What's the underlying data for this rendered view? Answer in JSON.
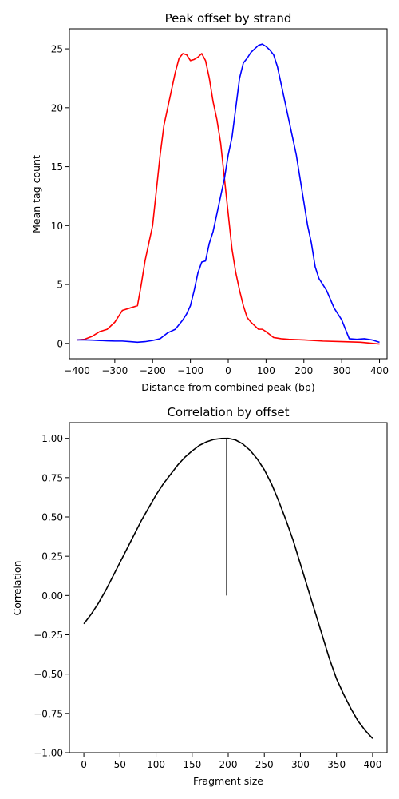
{
  "chart_data": [
    {
      "type": "line",
      "title": "Peak offset by strand",
      "xlabel": "Distance from combined peak (bp)",
      "ylabel": "Mean tag count",
      "xlim": [
        -420,
        420
      ],
      "ylim": [
        -1.3,
        26.7
      ],
      "xticks": [
        -400,
        -300,
        -200,
        -100,
        0,
        100,
        200,
        300,
        400
      ],
      "yticks": [
        0,
        5,
        10,
        15,
        20,
        25
      ],
      "grid": false,
      "series": [
        {
          "color": "#ff0000",
          "x": [
            -400,
            -380,
            -360,
            -340,
            -320,
            -300,
            -280,
            -260,
            -240,
            -230,
            -220,
            -210,
            -200,
            -190,
            -180,
            -170,
            -160,
            -150,
            -140,
            -130,
            -120,
            -110,
            -100,
            -90,
            -80,
            -70,
            -60,
            -50,
            -40,
            -30,
            -20,
            -10,
            0,
            10,
            20,
            30,
            40,
            50,
            60,
            70,
            80,
            90,
            100,
            120,
            140,
            160,
            200,
            250,
            300,
            350,
            400
          ],
          "y": [
            0.3,
            0.35,
            0.6,
            1.0,
            1.2,
            1.8,
            2.8,
            3.0,
            3.2,
            5.0,
            7.0,
            8.5,
            10.0,
            13.0,
            16.0,
            18.5,
            20.0,
            21.5,
            23.0,
            24.2,
            24.6,
            24.5,
            24.0,
            24.1,
            24.3,
            24.6,
            24.0,
            22.5,
            20.5,
            19.0,
            17.0,
            14.0,
            11.0,
            8.0,
            6.0,
            4.5,
            3.2,
            2.2,
            1.8,
            1.5,
            1.2,
            1.2,
            1.0,
            0.5,
            0.4,
            0.35,
            0.3,
            0.2,
            0.15,
            0.1,
            -0.05
          ]
        },
        {
          "color": "#0000ff",
          "x": [
            -400,
            -380,
            -360,
            -340,
            -320,
            -300,
            -280,
            -260,
            -240,
            -220,
            -200,
            -180,
            -160,
            -140,
            -120,
            -110,
            -100,
            -90,
            -80,
            -70,
            -60,
            -50,
            -40,
            -30,
            -20,
            -10,
            0,
            10,
            20,
            30,
            40,
            50,
            60,
            70,
            80,
            90,
            100,
            110,
            120,
            130,
            140,
            150,
            160,
            170,
            180,
            190,
            200,
            210,
            220,
            230,
            240,
            250,
            260,
            280,
            300,
            320,
            340,
            360,
            380,
            400
          ],
          "y": [
            0.3,
            0.3,
            0.28,
            0.25,
            0.22,
            0.2,
            0.2,
            0.15,
            0.1,
            0.15,
            0.25,
            0.4,
            0.9,
            1.2,
            2.0,
            2.5,
            3.2,
            4.5,
            6.0,
            6.9,
            7.0,
            8.5,
            9.5,
            11.0,
            12.5,
            14.0,
            16.0,
            17.5,
            20.0,
            22.5,
            23.8,
            24.2,
            24.7,
            25.0,
            25.3,
            25.4,
            25.2,
            24.9,
            24.5,
            23.5,
            22.0,
            20.5,
            19.0,
            17.5,
            16.0,
            14.0,
            12.0,
            10.0,
            8.5,
            6.5,
            5.5,
            5.0,
            4.5,
            3.0,
            2.0,
            0.4,
            0.35,
            0.4,
            0.3,
            0.1
          ]
        }
      ]
    },
    {
      "type": "line",
      "title": "Correlation by offset",
      "xlabel": "Fragment size",
      "ylabel": "Correlation",
      "xlim": [
        -20,
        420
      ],
      "ylim": [
        -1.0,
        1.1
      ],
      "xticks": [
        0,
        50,
        100,
        150,
        200,
        250,
        300,
        350,
        400
      ],
      "yticks": [
        -1.0,
        -0.75,
        -0.5,
        -0.25,
        0.0,
        0.25,
        0.5,
        0.75,
        1.0
      ],
      "ytick_labels": [
        "−1.00",
        "−0.75",
        "−0.50",
        "−0.25",
        "0.00",
        "0.25",
        "0.50",
        "0.75",
        "1.00"
      ],
      "grid": false,
      "series": [
        {
          "color": "#000000",
          "x": [
            0,
            10,
            20,
            30,
            40,
            50,
            60,
            70,
            80,
            90,
            100,
            110,
            120,
            130,
            140,
            150,
            160,
            170,
            180,
            190,
            200,
            210,
            220,
            230,
            240,
            250,
            260,
            270,
            280,
            290,
            300,
            310,
            320,
            330,
            340,
            350,
            360,
            370,
            380,
            390,
            400
          ],
          "y": [
            -0.18,
            -0.12,
            -0.05,
            0.03,
            0.12,
            0.21,
            0.3,
            0.39,
            0.48,
            0.56,
            0.64,
            0.71,
            0.77,
            0.83,
            0.88,
            0.92,
            0.955,
            0.978,
            0.993,
            0.999,
            1.0,
            0.99,
            0.965,
            0.925,
            0.87,
            0.8,
            0.71,
            0.6,
            0.48,
            0.35,
            0.2,
            0.05,
            -0.1,
            -0.25,
            -0.4,
            -0.53,
            -0.63,
            -0.72,
            -0.8,
            -0.86,
            -0.91
          ]
        }
      ],
      "vline": {
        "x": 198,
        "y0": 0.0,
        "y1": 1.0,
        "color": "#000000"
      }
    }
  ]
}
